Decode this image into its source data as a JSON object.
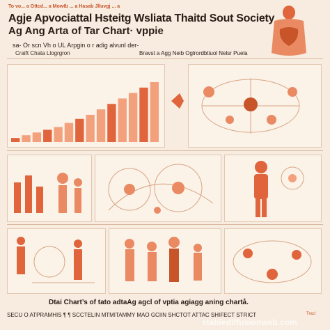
{
  "header": {
    "top_strip": "To vo... a  Gttcd... a  Mowtb ... a  Hasab  Jlluvgj ... a",
    "title_line1": "Agje Apvociattal Hsteitg Wsliata Thaitd Sout Society",
    "title_line2": "Ag Ang Arta of Tar Chart· vppie",
    "subtitle_line1": "sa- Or scn Vh o UL Arpgin o r adig alvunl der-",
    "subtitle_line2": "Craift Chata Llogrgron",
    "subtitle_right": "Bravst a Agg  Neib Oglrordbtiuol Nelsr Puela"
  },
  "chart_panel": {
    "bar_values": [
      3,
      5,
      7,
      9,
      11,
      14,
      17,
      20,
      24,
      28,
      32,
      36,
      40,
      44
    ],
    "highlight_color": "#e0643c",
    "base_color": "#f3a07c"
  },
  "footer": {
    "line1": "Dtai Chart’s of tato adtaAg agcl of vptia agiagg aning chartå.",
    "line2": "SECU O ATPRAMHIS ¶ ¶ SCCTELIN MTMITAMMY MAO GCIIN SHCTOT ATTAC SHIFECT STRICT",
    "tag": "Tracl",
    "watermark": "stablediffusionweb.com"
  },
  "colors": {
    "accent": "#e0643c",
    "accent_light": "#f3a07c",
    "background": "#f7ecdf"
  }
}
